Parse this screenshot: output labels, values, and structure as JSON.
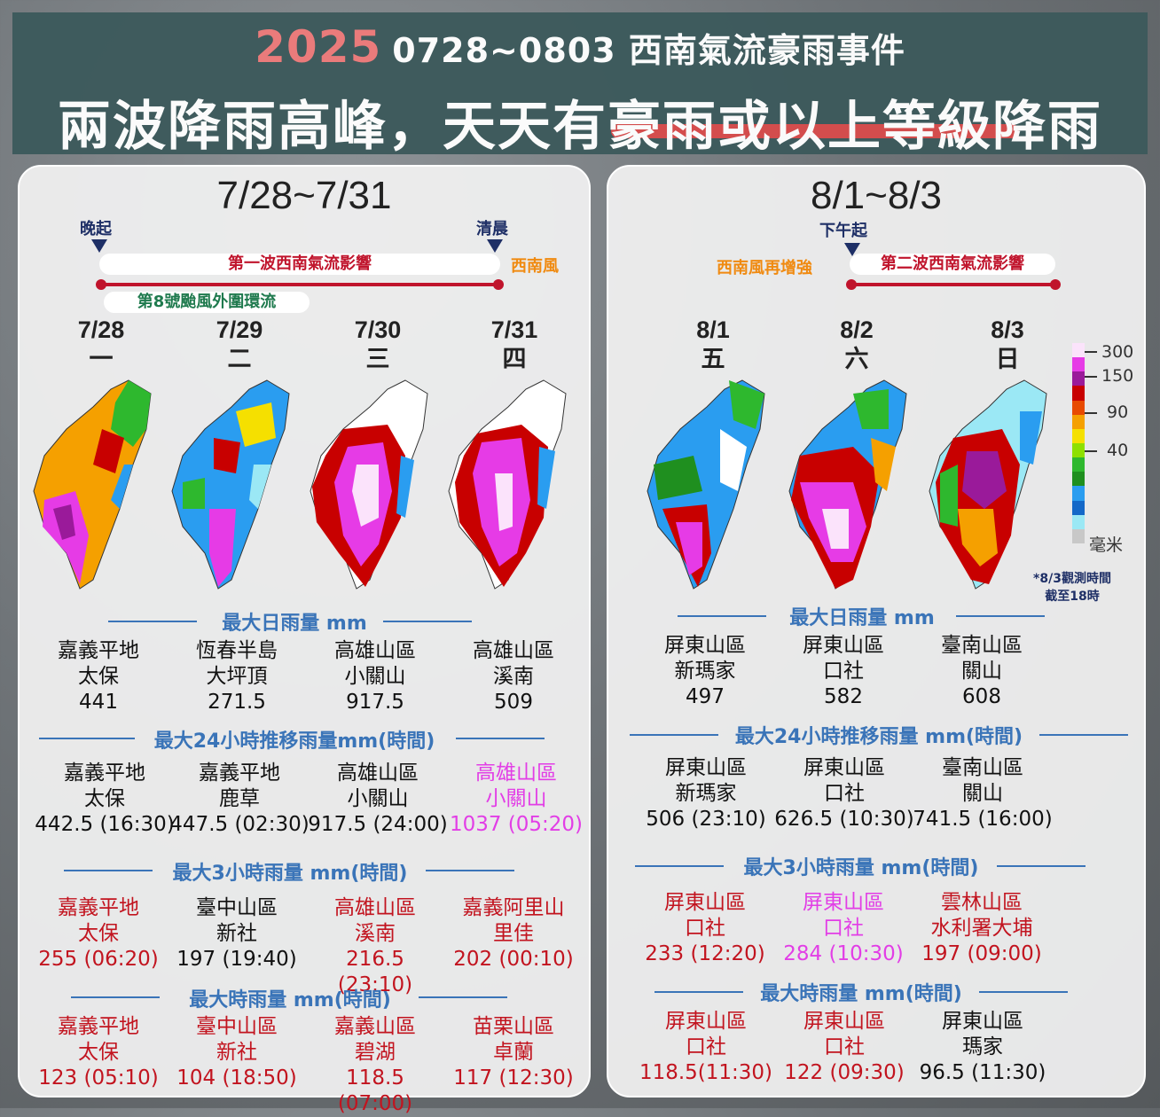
{
  "header": {
    "year": "2025",
    "event": "0728~0803 西南氣流豪雨事件",
    "headline_a": "兩波降雨高峰，天天有",
    "headline_b": "豪雨或以上等級降雨"
  },
  "left": {
    "title": "7/28~7/31",
    "label_start": "晚起",
    "label_end": "清晨",
    "wave_label": "第一波西南氣流影響",
    "wind_label": "西南風",
    "typhoon_label": "第8號颱風外圍環流",
    "days": [
      {
        "date": "7/28",
        "weekday": "一"
      },
      {
        "date": "7/29",
        "weekday": "二"
      },
      {
        "date": "7/30",
        "weekday": "三"
      },
      {
        "date": "7/31",
        "weekday": "四"
      }
    ],
    "sections": [
      {
        "title": "最大日雨量 mm",
        "cells": [
          {
            "region": "嘉義平地",
            "station": "太保",
            "value": "441"
          },
          {
            "region": "恆春半島",
            "station": "大坪頂",
            "value": "271.5"
          },
          {
            "region": "高雄山區",
            "station": "小關山",
            "value": "917.5"
          },
          {
            "region": "高雄山區",
            "station": "溪南",
            "value": "509"
          }
        ]
      },
      {
        "title": "最大24小時推移雨量mm(時間)",
        "cells": [
          {
            "region": "嘉義平地",
            "station": "太保",
            "value": "442.5 (16:30)"
          },
          {
            "region": "嘉義平地",
            "station": "鹿草",
            "value": "447.5 (02:30)"
          },
          {
            "region": "高雄山區",
            "station": "小關山",
            "value": "917.5 (24:00)"
          },
          {
            "region": "高雄山區",
            "station": "小關山",
            "value": "1037 (05:20)"
          }
        ]
      },
      {
        "title": "最大3小時雨量 mm(時間)",
        "cells": [
          {
            "region": "嘉義平地",
            "station": "太保",
            "value": "255 (06:20)"
          },
          {
            "region": "臺中山區",
            "station": "新社",
            "value": "197 (19:40)"
          },
          {
            "region": "高雄山區",
            "station": "溪南",
            "value": "216.5 (23:10)"
          },
          {
            "region": "嘉義阿里山",
            "station": "里佳",
            "value": "202 (00:10)"
          }
        ]
      },
      {
        "title": "最大時雨量 mm(時間)",
        "cells": [
          {
            "region": "嘉義平地",
            "station": "太保",
            "value": "123 (05:10)"
          },
          {
            "region": "臺中山區",
            "station": "新社",
            "value": "104 (18:50)"
          },
          {
            "region": "嘉義山區",
            "station": "碧湖",
            "value": "118.5 (07:00)"
          },
          {
            "region": "苗栗山區",
            "station": "卓蘭",
            "value": "117 (12:30)"
          }
        ]
      }
    ]
  },
  "right": {
    "title": "8/1~8/3",
    "label_start": "下午起",
    "wind_label": "西南風再增強",
    "wave_label": "第二波西南氣流影響",
    "days": [
      {
        "date": "8/1",
        "weekday": "五"
      },
      {
        "date": "8/2",
        "weekday": "六"
      },
      {
        "date": "8/3",
        "weekday": "日"
      }
    ],
    "note_line1": "*8/3觀測時間",
    "note_line2": "截至18時",
    "sections": [
      {
        "title": "最大日雨量 mm",
        "cells": [
          {
            "region": "屏東山區",
            "station": "新瑪家",
            "value": "497"
          },
          {
            "region": "屏東山區",
            "station": "口社",
            "value": "582"
          },
          {
            "region": "臺南山區",
            "station": "關山",
            "value": "608"
          }
        ]
      },
      {
        "title": "最大24小時推移雨量 mm(時間)",
        "cells": [
          {
            "region": "屏東山區",
            "station": "新瑪家",
            "value": "506 (23:10)"
          },
          {
            "region": "屏東山區",
            "station": "口社",
            "value": "626.5 (10:30)"
          },
          {
            "region": "臺南山區",
            "station": "關山",
            "value": "741.5 (16:00)"
          }
        ]
      },
      {
        "title": "最大3小時雨量 mm(時間)",
        "cells": [
          {
            "region": "屏東山區",
            "station": "口社",
            "value": "233 (12:20)"
          },
          {
            "region": "屏東山區",
            "station": "口社",
            "value": "284 (10:30)"
          },
          {
            "region": "雲林山區",
            "station": "水利署大埔",
            "value": "197 (09:00)"
          }
        ]
      },
      {
        "title": "最大時雨量 mm(時間)",
        "cells": [
          {
            "region": "屏東山區",
            "station": "口社",
            "value": "118.5(11:30)"
          },
          {
            "region": "屏東山區",
            "station": "口社",
            "value": "122 (09:30)"
          },
          {
            "region": "屏東山區",
            "station": "瑪家",
            "value": "96.5 (11:30)"
          }
        ]
      }
    ]
  },
  "legend": {
    "ticks": [
      "300",
      "150",
      "90",
      "40"
    ],
    "unit": "毫米",
    "colors": [
      "#fbe3fb",
      "#e63be6",
      "#9a1a9a",
      "#c80000",
      "#e84a00",
      "#f5a000",
      "#f5e000",
      "#8ee000",
      "#2eb82e",
      "#1f8f1f",
      "#2a9df0",
      "#1468c8",
      "#9be8f5",
      "#c8c8c8"
    ]
  }
}
